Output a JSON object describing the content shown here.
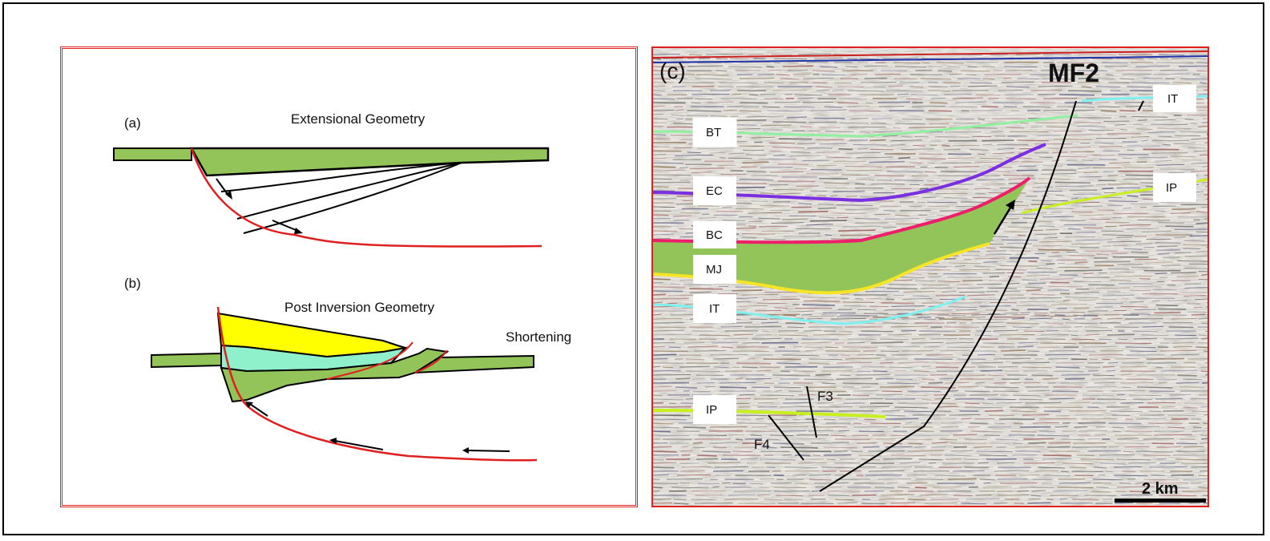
{
  "panel_a": {
    "label": "(a)",
    "title": "Extensional Geometry"
  },
  "panel_b": {
    "label": "(b)",
    "title": "Post Inversion Geometry",
    "annotation": "Shortening"
  },
  "panel_c": {
    "label": "(c)",
    "fault_main": "MF2",
    "fault_minor": [
      "F3",
      "F4"
    ],
    "horizons": [
      {
        "id": "BT",
        "label": "BT",
        "color": "#90f0a0"
      },
      {
        "id": "EC",
        "label": "EC",
        "color": "#7a2fe0"
      },
      {
        "id": "BC",
        "label": "BC",
        "color": "#ee1f6a"
      },
      {
        "id": "MJ",
        "label": "MJ",
        "color": "#f5e526"
      },
      {
        "id": "IT",
        "label": "IT",
        "color": "#7ff0f0"
      },
      {
        "id": "IP",
        "label": "IP",
        "color": "#c8f020"
      }
    ],
    "right_labels": [
      "IT",
      "IP"
    ],
    "lower_label": "IP",
    "scale_bar": "2 km"
  },
  "colors": {
    "frame": "#e02020",
    "green_unit": "#92c45a",
    "yellow_unit": "#ffff00",
    "cyan_unit": "#8ff0cc",
    "fault": "#e02020"
  }
}
